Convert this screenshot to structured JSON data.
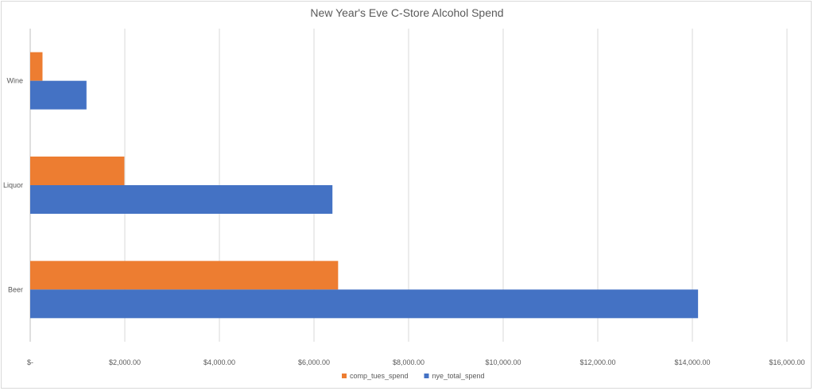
{
  "chart_data": {
    "type": "bar",
    "orientation": "horizontal",
    "title": "New Year's Eve C-Store Alcohol Spend",
    "categories": [
      "Wine",
      "Liquor",
      "Beer"
    ],
    "series": [
      {
        "name": "comp_tues_spend",
        "color": "#ED7D31",
        "values": [
          260,
          1990,
          6510
        ]
      },
      {
        "name": "nye_total_spend",
        "color": "#4472C4",
        "values": [
          1190,
          6390,
          14120
        ]
      }
    ],
    "xlim": [
      0,
      16000
    ],
    "x_ticks": [
      0,
      2000,
      4000,
      6000,
      8000,
      10000,
      12000,
      14000,
      16000
    ],
    "x_tick_labels": [
      "$-",
      "$2,000.00",
      "$4,000.00",
      "$6,000.00",
      "$8,000.00",
      "$10,000.00",
      "$12,000.00",
      "$14,000.00",
      "$16,000.00"
    ],
    "grid": "vertical",
    "legend_position": "bottom"
  }
}
